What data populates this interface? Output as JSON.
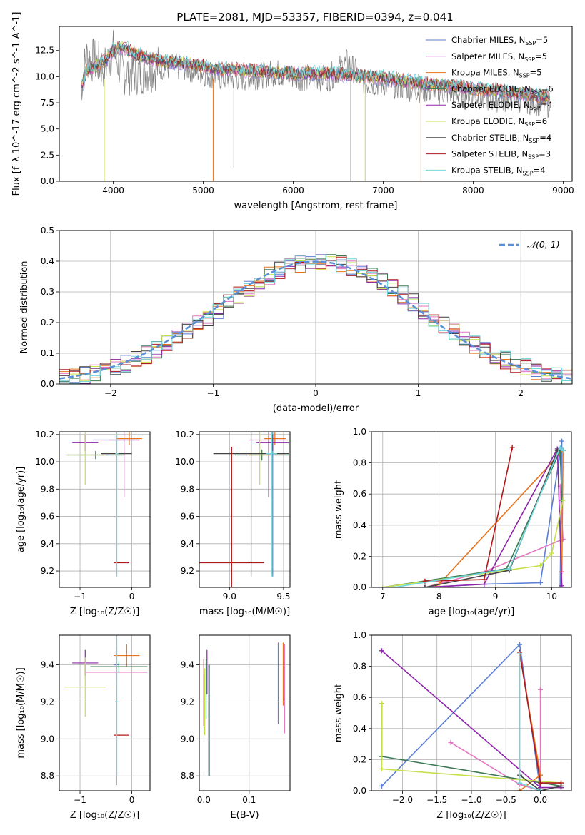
{
  "figure": {
    "title": "PLATE=2081, MJD=53357, FIBERID=0394, z=0.041"
  },
  "legend_spectrum": [
    {
      "name": "Chabrier MILES",
      "nssp": "5",
      "color": "#5b7fd6"
    },
    {
      "name": "Salpeter MILES",
      "nssp": "5",
      "color": "#e377c2"
    },
    {
      "name": "Kroupa MILES",
      "nssp": "5",
      "color": "#e8731a"
    },
    {
      "name": "Chabrier ELODIE",
      "nssp": "6",
      "color": "#3c7a55"
    },
    {
      "name": "Salpeter ELODIE",
      "nssp": "4",
      "color": "#8e24aa"
    },
    {
      "name": "Kroupa ELODIE",
      "nssp": "6",
      "color": "#c6e04a"
    },
    {
      "name": "Chabrier STELIB",
      "nssp": "4",
      "color": "#444444"
    },
    {
      "name": "Salpeter STELIB",
      "nssp": "3",
      "color": "#b0181c"
    },
    {
      "name": "Kroupa STELIB",
      "nssp": "4",
      "color": "#6fd6dc"
    }
  ],
  "chart_data": [
    {
      "id": "spectrum",
      "type": "line",
      "xlabel": "wavelength [Angstrom, rest frame]",
      "ylabel": "Flux [f_λ 10^-17 erg cm^-2 s^-1 A^-1]",
      "xlim": [
        3400,
        9100
      ],
      "ylim": [
        0,
        14.8
      ],
      "xticks": [
        4000,
        5000,
        6000,
        7000,
        8000,
        9000
      ],
      "yticks": [
        0.0,
        2.5,
        5.0,
        7.5,
        10.0,
        12.5
      ],
      "data_gray": {
        "x": [
          3640,
          3700,
          3800,
          3900,
          4000,
          4100,
          4300,
          4500,
          4800,
          5000,
          5200,
          5500,
          5800,
          6100,
          6400,
          6600,
          6800,
          7000,
          7300,
          7600,
          7900,
          8200,
          8500,
          8800
        ],
        "y": [
          9.5,
          12.5,
          12,
          11.5,
          13,
          11,
          11,
          11.5,
          11.5,
          11,
          10.5,
          10.5,
          11,
          10.5,
          10.5,
          12,
          10,
          10,
          9.5,
          9.2,
          9.0,
          8.5,
          8.5,
          8.0
        ]
      },
      "model": {
        "x": [
          3650,
          3700,
          3800,
          3900,
          4000,
          4100,
          4300,
          4500,
          4800,
          5000,
          5200,
          5500,
          5800,
          6100,
          6400,
          6600,
          6800,
          7000,
          7300,
          7600,
          7900,
          8200,
          8500,
          8800
        ],
        "y": [
          9.0,
          10.5,
          11,
          11.5,
          12.5,
          12.8,
          12.0,
          11.5,
          11.3,
          11.0,
          10.7,
          10.6,
          10.4,
          10.3,
          10.3,
          10.2,
          10.0,
          9.9,
          9.5,
          9.2,
          9.0,
          8.7,
          8.4,
          8.1
        ]
      }
    },
    {
      "id": "residual_hist",
      "type": "line",
      "xlabel": "(data-model)/error",
      "ylabel": "Normed distribution",
      "xlim": [
        -2.5,
        2.5
      ],
      "ylim": [
        0,
        0.5
      ],
      "xticks": [
        -2,
        -1,
        0,
        1,
        2
      ],
      "yticks": [
        0.0,
        0.1,
        0.2,
        0.3,
        0.4,
        0.5
      ],
      "legend": "N(0,1)",
      "hist_x": [
        -2.4,
        -2.2,
        -2.0,
        -1.8,
        -1.6,
        -1.4,
        -1.2,
        -1.0,
        -0.8,
        -0.6,
        -0.4,
        -0.2,
        0.0,
        0.2,
        0.4,
        0.6,
        0.8,
        1.0,
        1.2,
        1.4,
        1.6,
        1.8,
        2.0,
        2.2,
        2.4
      ],
      "hist_y": [
        0.03,
        0.04,
        0.06,
        0.08,
        0.12,
        0.16,
        0.2,
        0.26,
        0.31,
        0.35,
        0.39,
        0.42,
        0.43,
        0.41,
        0.38,
        0.34,
        0.3,
        0.24,
        0.19,
        0.15,
        0.11,
        0.08,
        0.06,
        0.04,
        0.03
      ]
    },
    {
      "id": "age_vs_z",
      "type": "scatter",
      "xlabel": "Z [log10(Z/Z☉)]",
      "ylabel": "age  [log10(age/yr)]",
      "xlim": [
        -1.4,
        0.35
      ],
      "ylim": [
        9.08,
        10.22
      ],
      "xticks": [
        -1,
        0
      ],
      "yticks": [
        9.2,
        9.4,
        9.6,
        9.8,
        10.0,
        10.2
      ],
      "points": [
        {
          "x": -0.3,
          "y": 10.16,
          "xerr": 0.45,
          "yerr": 0.04,
          "series": 0
        },
        {
          "x": -0.15,
          "y": 10.16,
          "xerr": 0.3,
          "yerr": 0.42,
          "series": 1
        },
        {
          "x": -0.05,
          "y": 10.17,
          "xerr": 0.25,
          "yerr": 0.05,
          "series": 2
        },
        {
          "x": -0.7,
          "y": 10.05,
          "xerr": 0.55,
          "yerr": 0.03,
          "series": 3
        },
        {
          "x": -0.9,
          "y": 10.14,
          "xerr": 0.25,
          "yerr": 0.06,
          "series": 4
        },
        {
          "x": -0.9,
          "y": 10.05,
          "xerr": 0.4,
          "yerr": 0.22,
          "series": 5
        },
        {
          "x": -0.3,
          "y": 10.06,
          "xerr": 0.3,
          "yerr": 0.9,
          "series": 6
        },
        {
          "x": -0.2,
          "y": 9.26,
          "xerr": 0.15,
          "yerr": 0.0,
          "series": 7
        },
        {
          "x": -0.29,
          "y": 10.06,
          "xerr": 0.03,
          "yerr": 0.9,
          "series": 8
        }
      ]
    },
    {
      "id": "age_vs_mass",
      "type": "scatter",
      "xlabel": "mass [log10(M/M☉)]",
      "ylabel": "",
      "xlim": [
        8.72,
        9.56
      ],
      "ylim": [
        9.08,
        10.22
      ],
      "xticks": [
        9.0,
        9.5
      ],
      "yticks": [
        9.2,
        9.4,
        9.6,
        9.8,
        10.0,
        10.2
      ],
      "points": [
        {
          "x": 9.4,
          "y": 10.06,
          "xerr": 0.05,
          "yerr": 0.9,
          "series": 0
        },
        {
          "x": 9.36,
          "y": 10.16,
          "xerr": 0.18,
          "yerr": 0.42,
          "series": 1
        },
        {
          "x": 9.42,
          "y": 10.17,
          "xerr": 0.1,
          "yerr": 0.05,
          "series": 2
        },
        {
          "x": 9.3,
          "y": 10.05,
          "xerr": 0.25,
          "yerr": 0.04,
          "series": 3
        },
        {
          "x": 9.4,
          "y": 10.14,
          "xerr": 0.15,
          "yerr": 0.06,
          "series": 4
        },
        {
          "x": 9.28,
          "y": 10.05,
          "xerr": 0.1,
          "yerr": 0.22,
          "series": 5
        },
        {
          "x": 9.2,
          "y": 10.06,
          "xerr": 0.35,
          "yerr": 0.9,
          "series": 6
        },
        {
          "x": 9.02,
          "y": 9.26,
          "xerr": 0.3,
          "yerr": 0.85,
          "series": 7
        },
        {
          "x": 9.39,
          "y": 10.06,
          "xerr": 0.05,
          "yerr": 0.9,
          "series": 8
        }
      ]
    },
    {
      "id": "mw_vs_age",
      "type": "line",
      "xlabel": "age  [log10(age/yr)]",
      "ylabel": "mass weight",
      "xlim": [
        6.8,
        10.35
      ],
      "ylim": [
        0,
        1.0
      ],
      "xticks": [
        7,
        8,
        9,
        10
      ],
      "yticks": [
        0.0,
        0.2,
        0.4,
        0.6,
        0.8,
        1.0
      ],
      "series": [
        {
          "color": "#5b7fd6",
          "x": [
            7.75,
            8.8,
            9.8,
            10.18,
            10.15
          ],
          "y": [
            0.0,
            0.02,
            0.03,
            0.94,
            0.0
          ]
        },
        {
          "color": "#e377c2",
          "x": [
            7.75,
            8.8,
            10.2,
            10.15
          ],
          "y": [
            0.0,
            0.1,
            0.31,
            0.65
          ]
        },
        {
          "color": "#e8731a",
          "x": [
            7.9,
            8.0,
            10.2,
            10.18
          ],
          "y": [
            0.0,
            0.02,
            0.88,
            0.1
          ]
        },
        {
          "color": "#3c7a55",
          "x": [
            7.0,
            9.2,
            10.15,
            10.18
          ],
          "y": [
            0.0,
            0.12,
            0.88,
            0.56
          ]
        },
        {
          "color": "#8e24aa",
          "x": [
            7.75,
            8.8,
            10.1,
            10.18
          ],
          "y": [
            0.0,
            0.02,
            0.89,
            0.01
          ]
        },
        {
          "color": "#c6e04a",
          "x": [
            7.0,
            9.8,
            10.0,
            10.2
          ],
          "y": [
            0.0,
            0.14,
            0.22,
            0.56
          ]
        },
        {
          "color": "#444444",
          "x": [
            7.75,
            9.25,
            10.1,
            10.2
          ],
          "y": [
            0.0,
            0.11,
            0.88,
            0.88
          ]
        },
        {
          "color": "#b0181c",
          "x": [
            7.75,
            8.8,
            9.3
          ],
          "y": [
            0.04,
            0.05,
            0.9
          ]
        },
        {
          "color": "#6fd6dc",
          "x": [
            7.2,
            9.25,
            10.15,
            10.2
          ],
          "y": [
            0.0,
            0.12,
            0.9,
            0.88
          ]
        }
      ]
    },
    {
      "id": "mass_vs_z",
      "type": "scatter",
      "xlabel": "Z [log10(Z/Z☉)]",
      "ylabel": "mass [log10(M/M☉)]",
      "xlim": [
        -1.4,
        0.35
      ],
      "ylim": [
        8.72,
        9.56
      ],
      "xticks": [
        -1,
        0
      ],
      "yticks": [
        8.8,
        9.0,
        9.2,
        9.4
      ],
      "points": [
        {
          "x": -0.3,
          "y": 9.4,
          "xerr": 0.05,
          "yerr": 0.1,
          "series": 0
        },
        {
          "x": -0.3,
          "y": 9.36,
          "xerr": 0.6,
          "yerr": 0.04,
          "series": 1
        },
        {
          "x": -0.1,
          "y": 9.45,
          "xerr": 0.25,
          "yerr": 0.06,
          "series": 2
        },
        {
          "x": -0.25,
          "y": 9.39,
          "xerr": 0.55,
          "yerr": 0.03,
          "series": 3
        },
        {
          "x": -0.9,
          "y": 9.41,
          "xerr": 0.25,
          "yerr": 0.07,
          "series": 4
        },
        {
          "x": -0.9,
          "y": 9.28,
          "xerr": 0.4,
          "yerr": 0.16,
          "series": 5
        },
        {
          "x": -0.3,
          "y": 9.2,
          "xerr": 0.02,
          "yerr": 0.45,
          "series": 6
        },
        {
          "x": -0.2,
          "y": 9.02,
          "xerr": 0.15,
          "yerr": 0.0,
          "series": 7
        },
        {
          "x": -0.29,
          "y": 9.2,
          "xerr": 0.02,
          "yerr": 0.4,
          "series": 8
        }
      ]
    },
    {
      "id": "mass_vs_ebv",
      "type": "scatter",
      "xlabel": "E(B-V)",
      "ylabel": "",
      "xlim": [
        -0.01,
        0.19
      ],
      "ylim": [
        8.72,
        9.56
      ],
      "xticks": [
        0.0,
        0.1
      ],
      "yticks": [
        8.8,
        9.0,
        9.2,
        9.4
      ],
      "points": [
        {
          "x": 0.164,
          "y": 9.3,
          "yerr": 0.22,
          "series": 0
        },
        {
          "x": 0.178,
          "y": 9.27,
          "yerr": 0.24,
          "series": 1
        },
        {
          "x": 0.175,
          "y": 9.35,
          "yerr": 0.17,
          "series": 2
        },
        {
          "x": 0.005,
          "y": 9.27,
          "yerr": 0.16,
          "series": 3
        },
        {
          "x": 0.007,
          "y": 9.36,
          "yerr": 0.12,
          "series": 4
        },
        {
          "x": 0.002,
          "y": 9.2,
          "yerr": 0.18,
          "series": 5
        },
        {
          "x": 0.012,
          "y": 9.1,
          "yerr": 0.3,
          "series": 6
        },
        {
          "x": 0.0,
          "y": 9.25,
          "yerr": 0.18,
          "series": 7
        },
        {
          "x": 0.01,
          "y": 9.1,
          "yerr": 0.3,
          "series": 8
        }
      ]
    },
    {
      "id": "mw_vs_z",
      "type": "line",
      "xlabel": "Z [log10(Z/Z☉)]",
      "ylabel": "mass weight",
      "xlim": [
        -2.45,
        0.45
      ],
      "ylim": [
        0,
        1.0
      ],
      "xticks": [
        -2.0,
        -1.5,
        -1.0,
        -0.5,
        0.0
      ],
      "yticks": [
        0.0,
        0.2,
        0.4,
        0.6,
        0.8,
        1.0
      ],
      "series": [
        {
          "color": "#5b7fd6",
          "x": [
            -2.3,
            -0.3,
            0.0
          ],
          "y": [
            0.03,
            0.94,
            0.0
          ]
        },
        {
          "color": "#e377c2",
          "x": [
            -1.3,
            -0.3,
            0.0,
            0.0
          ],
          "y": [
            0.31,
            0.04,
            0.0,
            0.65
          ]
        },
        {
          "color": "#e8731a",
          "x": [
            -0.3,
            0.0,
            -0.3
          ],
          "y": [
            0.0,
            0.1,
            0.88
          ]
        },
        {
          "color": "#3c7a55",
          "x": [
            -2.3,
            -2.3,
            0.3
          ],
          "y": [
            0.56,
            0.22,
            0.03
          ]
        },
        {
          "color": "#8e24aa",
          "x": [
            -2.3,
            0.0,
            0.3
          ],
          "y": [
            0.9,
            0.02,
            0.02
          ]
        },
        {
          "color": "#c6e04a",
          "x": [
            -2.3,
            -2.3,
            0.3
          ],
          "y": [
            0.56,
            0.14,
            0.05
          ]
        },
        {
          "color": "#444444",
          "x": [
            -0.3,
            0.0,
            0.3
          ],
          "y": [
            0.1,
            0.0,
            0.03
          ]
        },
        {
          "color": "#b0181c",
          "x": [
            -0.3,
            0.0,
            0.3
          ],
          "y": [
            0.89,
            0.05,
            0.05
          ]
        },
        {
          "color": "#6fd6dc",
          "x": [
            -0.3,
            -0.3,
            0.0
          ],
          "y": [
            0.88,
            0.05,
            0.0
          ]
        }
      ]
    }
  ]
}
